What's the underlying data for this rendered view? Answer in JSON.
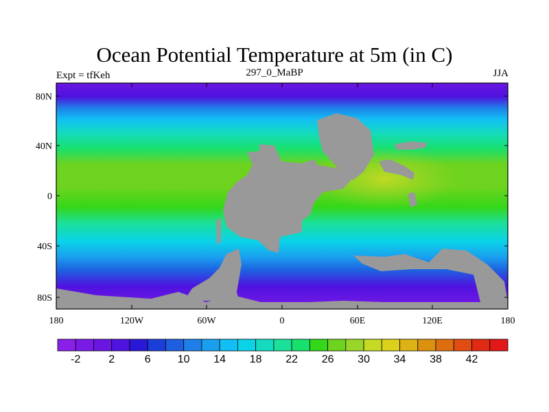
{
  "title": "Ocean Potential Temperature at 5m (in C)",
  "left_label": "Expt = tfKeh",
  "center_label": "297_0_MaBP",
  "right_label": "JJA",
  "lat_ticks": [
    "80N",
    "40N",
    "0",
    "40S",
    "80S"
  ],
  "lon_ticks": [
    "180",
    "120W",
    "60W",
    "0",
    "60E",
    "120E",
    "180"
  ],
  "colorbar_labels": [
    "-2",
    "2",
    "6",
    "10",
    "14",
    "18",
    "22",
    "26",
    "30",
    "34",
    "38",
    "42"
  ],
  "colorbar_colors": [
    "#8a1fe8",
    "#7a1ae6",
    "#6a16e2",
    "#4f12df",
    "#2a18d8",
    "#1b3ed9",
    "#1e5fe0",
    "#1f7fe8",
    "#1a9fef",
    "#11bff4",
    "#0ad3e8",
    "#14dbbf",
    "#1be09a",
    "#18e06e",
    "#34d71a",
    "#6ed31e",
    "#9ad62a",
    "#c6da24",
    "#dcd01a",
    "#dcb214",
    "#dc9010",
    "#dc6e10",
    "#e04c12",
    "#e02a14",
    "#e01818"
  ],
  "land_color": "#999999"
}
